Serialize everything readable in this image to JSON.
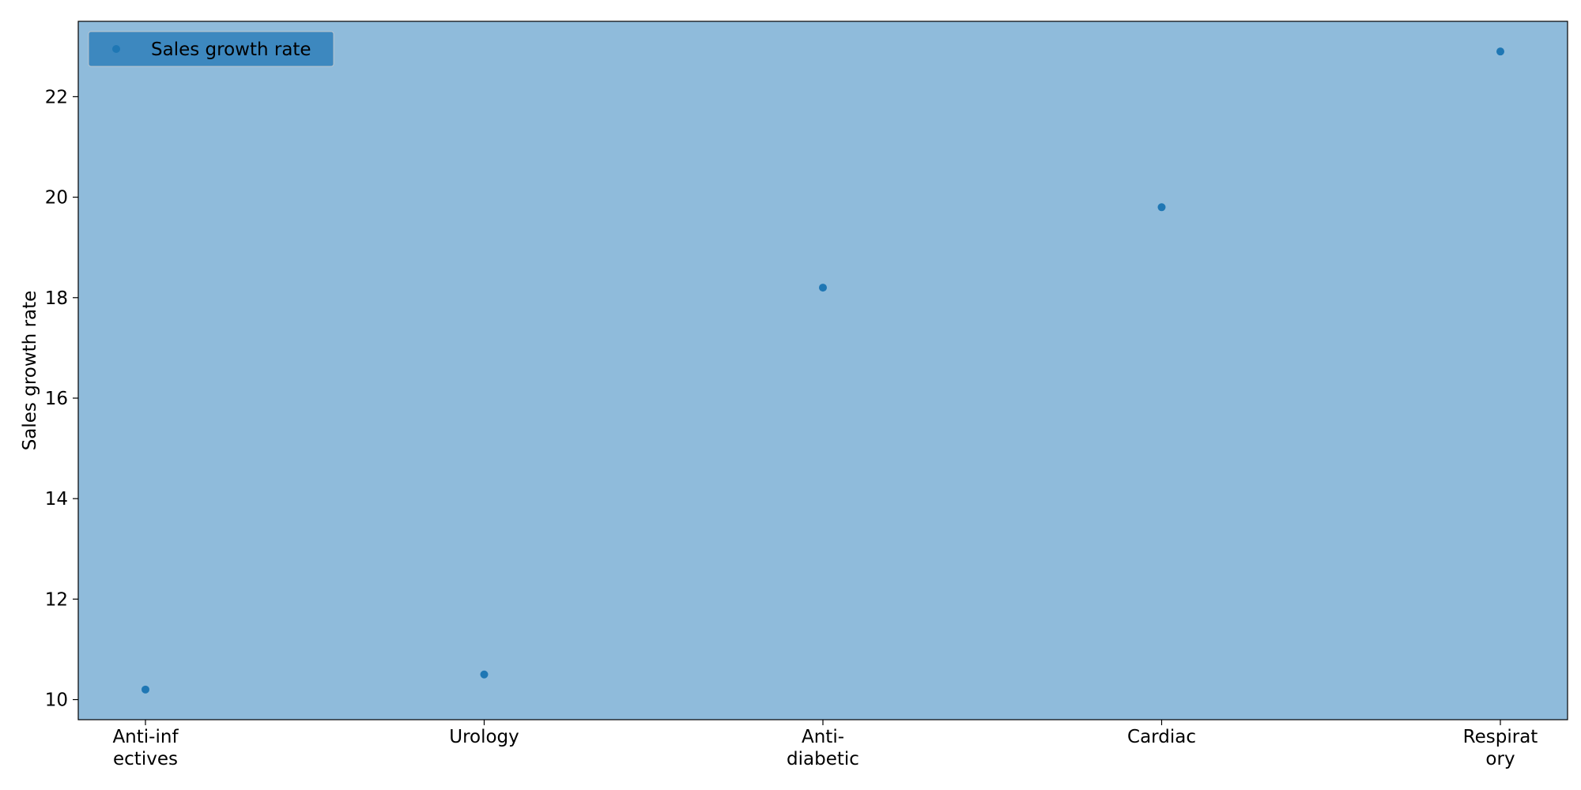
{
  "colors": {
    "plot_background": "#8fbbdb",
    "marker": "#1f77b4",
    "legend_background": "#3d88bf",
    "axis": "#000000"
  },
  "legend": {
    "label": "Sales growth rate",
    "placement": "upper-left"
  },
  "chart_data": {
    "type": "scatter",
    "title": "",
    "xlabel": "",
    "ylabel": "Sales growth rate",
    "categories": [
      [
        "Anti-inf",
        "ectives"
      ],
      [
        "Urology"
      ],
      [
        "Anti-",
        "diabetic"
      ],
      [
        "Cardiac"
      ],
      [
        "Respirat",
        "ory"
      ]
    ],
    "series": [
      {
        "name": "Sales growth rate",
        "values": [
          10.2,
          10.5,
          18.2,
          19.8,
          22.9
        ]
      }
    ],
    "ylim": [
      9.6,
      23.5
    ],
    "yticks": [
      10,
      12,
      14,
      16,
      18,
      20,
      22
    ],
    "grid": false
  }
}
